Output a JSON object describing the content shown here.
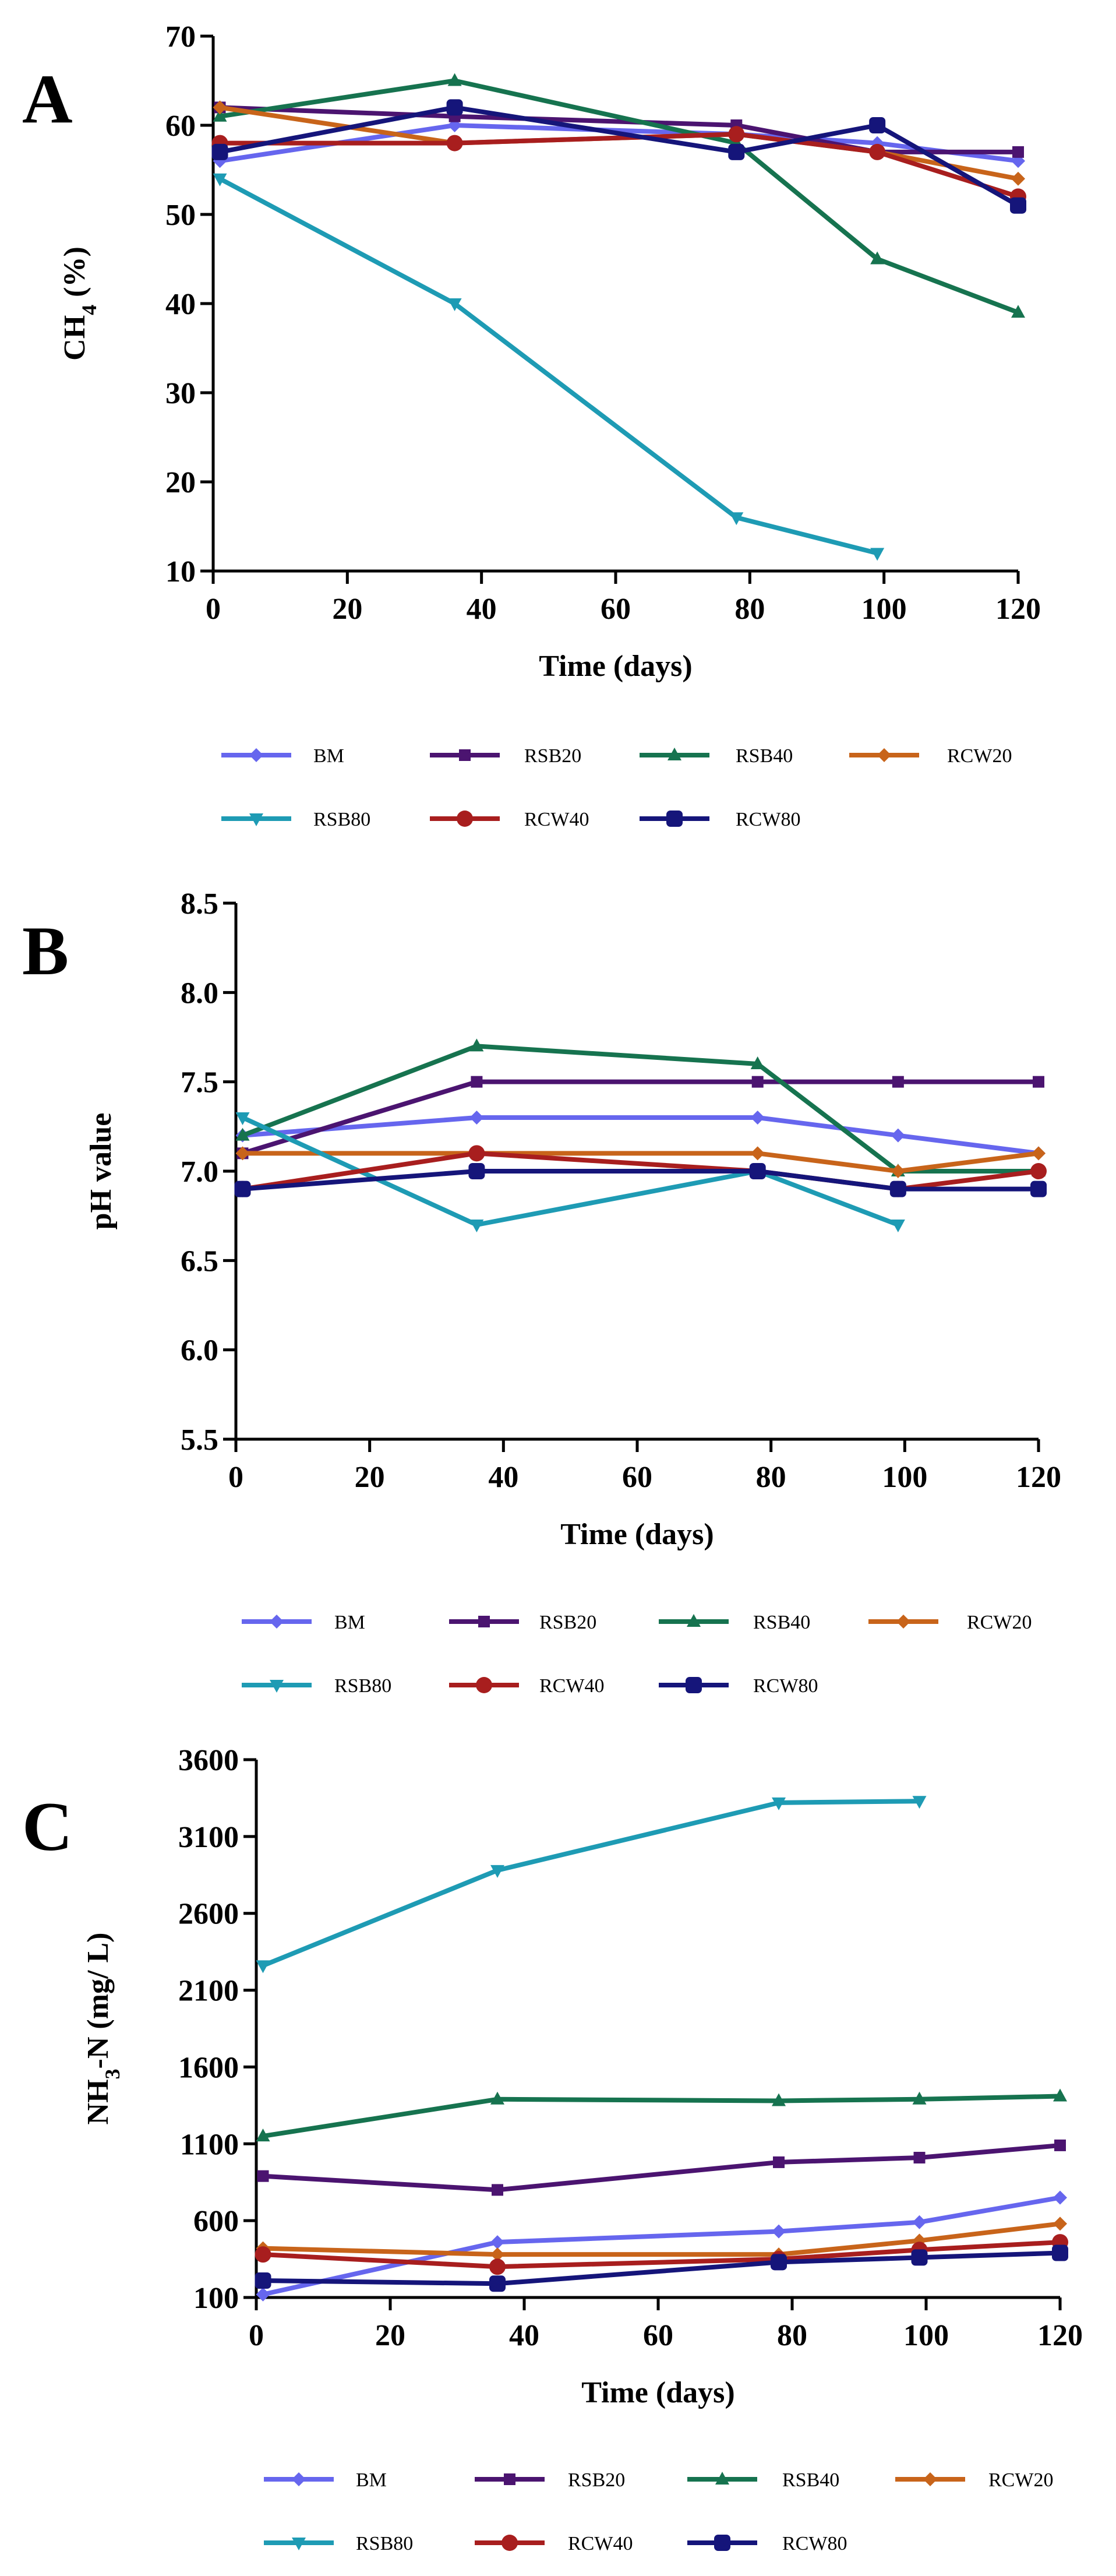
{
  "colors": {
    "BM": "#6666ee",
    "RSB20": "#4b1470",
    "RSB40": "#16734f",
    "RCW20": "#c8641a",
    "RSB80": "#1e9bb4",
    "RCW40": "#a81e1e",
    "RCW80": "#15157a"
  },
  "chart_data": [
    {
      "type": "line",
      "panel": "A",
      "xlabel": "Time (days)",
      "ylabel": {
        "base": "CH",
        "sub": "4",
        "rest": " (%)"
      },
      "xlim": [
        0,
        120
      ],
      "ylim": [
        10,
        70
      ],
      "xticks": [
        "0",
        "20",
        "40",
        "60",
        "80",
        "100",
        "120"
      ],
      "yticks": [
        "10",
        "20",
        "30",
        "40",
        "50",
        "60",
        "70"
      ],
      "series": [
        {
          "name": "BM",
          "marker": "diamond",
          "x": [
            1,
            36,
            78,
            99,
            120
          ],
          "y": [
            56,
            60,
            59,
            58,
            56
          ]
        },
        {
          "name": "RSB20",
          "marker": "square",
          "x": [
            1,
            36,
            78,
            99,
            120
          ],
          "y": [
            62,
            61,
            60,
            57,
            57
          ]
        },
        {
          "name": "RSB40",
          "marker": "triangle-up",
          "x": [
            1,
            36,
            78,
            99,
            120
          ],
          "y": [
            61,
            65,
            58,
            45,
            39
          ]
        },
        {
          "name": "RCW20",
          "marker": "diamond",
          "x": [
            1,
            36,
            78,
            99,
            120
          ],
          "y": [
            62,
            58,
            59,
            57,
            54
          ]
        },
        {
          "name": "RSB80",
          "marker": "triangle-down",
          "x": [
            1,
            36,
            78,
            99
          ],
          "y": [
            54,
            40,
            16,
            12
          ]
        },
        {
          "name": "RCW40",
          "marker": "circle",
          "x": [
            1,
            36,
            78,
            99,
            120
          ],
          "y": [
            58,
            58,
            59,
            57,
            52
          ]
        },
        {
          "name": "RCW80",
          "marker": "square-round",
          "x": [
            1,
            36,
            78,
            99,
            120
          ],
          "y": [
            57,
            62,
            57,
            60,
            51
          ]
        }
      ]
    },
    {
      "type": "line",
      "panel": "B",
      "xlabel": "Time (days)",
      "ylabel": {
        "base": "pH value",
        "sub": "",
        "rest": ""
      },
      "xlim": [
        0,
        120
      ],
      "ylim": [
        5.5,
        8.5
      ],
      "xticks": [
        "0",
        "20",
        "40",
        "60",
        "80",
        "100",
        "120"
      ],
      "yticks": [
        "5.5",
        "6.0",
        "6.5",
        "7.0",
        "7.5",
        "8.0",
        "8.5"
      ],
      "series": [
        {
          "name": "BM",
          "marker": "diamond",
          "x": [
            1,
            36,
            78,
            99,
            120
          ],
          "y": [
            7.2,
            7.3,
            7.3,
            7.2,
            7.1
          ]
        },
        {
          "name": "RSB20",
          "marker": "square",
          "x": [
            1,
            36,
            78,
            99,
            120
          ],
          "y": [
            7.1,
            7.5,
            7.5,
            7.5,
            7.5
          ]
        },
        {
          "name": "RSB40",
          "marker": "triangle-up",
          "x": [
            1,
            36,
            78,
            99,
            120
          ],
          "y": [
            7.2,
            7.7,
            7.6,
            7.0,
            7.0
          ]
        },
        {
          "name": "RCW20",
          "marker": "diamond",
          "x": [
            1,
            36,
            78,
            99,
            120
          ],
          "y": [
            7.1,
            7.1,
            7.1,
            7.0,
            7.1
          ]
        },
        {
          "name": "RSB80",
          "marker": "triangle-down",
          "x": [
            1,
            36,
            78,
            99
          ],
          "y": [
            7.3,
            6.7,
            7.0,
            6.7
          ]
        },
        {
          "name": "RCW40",
          "marker": "circle",
          "x": [
            1,
            36,
            78,
            99,
            120
          ],
          "y": [
            6.9,
            7.1,
            7.0,
            6.9,
            7.0
          ]
        },
        {
          "name": "RCW80",
          "marker": "square-round",
          "x": [
            1,
            36,
            78,
            99,
            120
          ],
          "y": [
            6.9,
            7.0,
            7.0,
            6.9,
            6.9
          ]
        }
      ]
    },
    {
      "type": "line",
      "panel": "C",
      "xlabel": "Time (days)",
      "ylabel": {
        "base": "NH",
        "sub": "3",
        "rest": "-N (mg/ L)"
      },
      "xlim": [
        0,
        120
      ],
      "ylim": [
        100,
        3600
      ],
      "xticks": [
        "0",
        "20",
        "40",
        "60",
        "80",
        "100",
        "120"
      ],
      "yticks": [
        "100",
        "600",
        "1100",
        "1600",
        "2100",
        "2600",
        "3100",
        "3600"
      ],
      "series": [
        {
          "name": "BM",
          "marker": "diamond",
          "x": [
            1,
            36,
            78,
            99,
            120
          ],
          "y": [
            120,
            460,
            530,
            590,
            750
          ]
        },
        {
          "name": "RSB20",
          "marker": "square",
          "x": [
            1,
            36,
            78,
            99,
            120
          ],
          "y": [
            890,
            800,
            980,
            1010,
            1090
          ]
        },
        {
          "name": "RSB40",
          "marker": "triangle-up",
          "x": [
            1,
            36,
            78,
            99,
            120
          ],
          "y": [
            1150,
            1390,
            1380,
            1390,
            1410
          ]
        },
        {
          "name": "RCW20",
          "marker": "diamond",
          "x": [
            1,
            36,
            78,
            99,
            120
          ],
          "y": [
            420,
            380,
            380,
            470,
            580
          ]
        },
        {
          "name": "RSB80",
          "marker": "triangle-down",
          "x": [
            1,
            36,
            78,
            99
          ],
          "y": [
            2260,
            2880,
            3320,
            3330
          ]
        },
        {
          "name": "RCW40",
          "marker": "circle",
          "x": [
            1,
            36,
            78,
            99,
            120
          ],
          "y": [
            380,
            300,
            350,
            410,
            460
          ]
        },
        {
          "name": "RCW80",
          "marker": "square-round",
          "x": [
            1,
            36,
            78,
            99,
            120
          ],
          "y": [
            210,
            190,
            330,
            360,
            390
          ]
        }
      ]
    }
  ]
}
